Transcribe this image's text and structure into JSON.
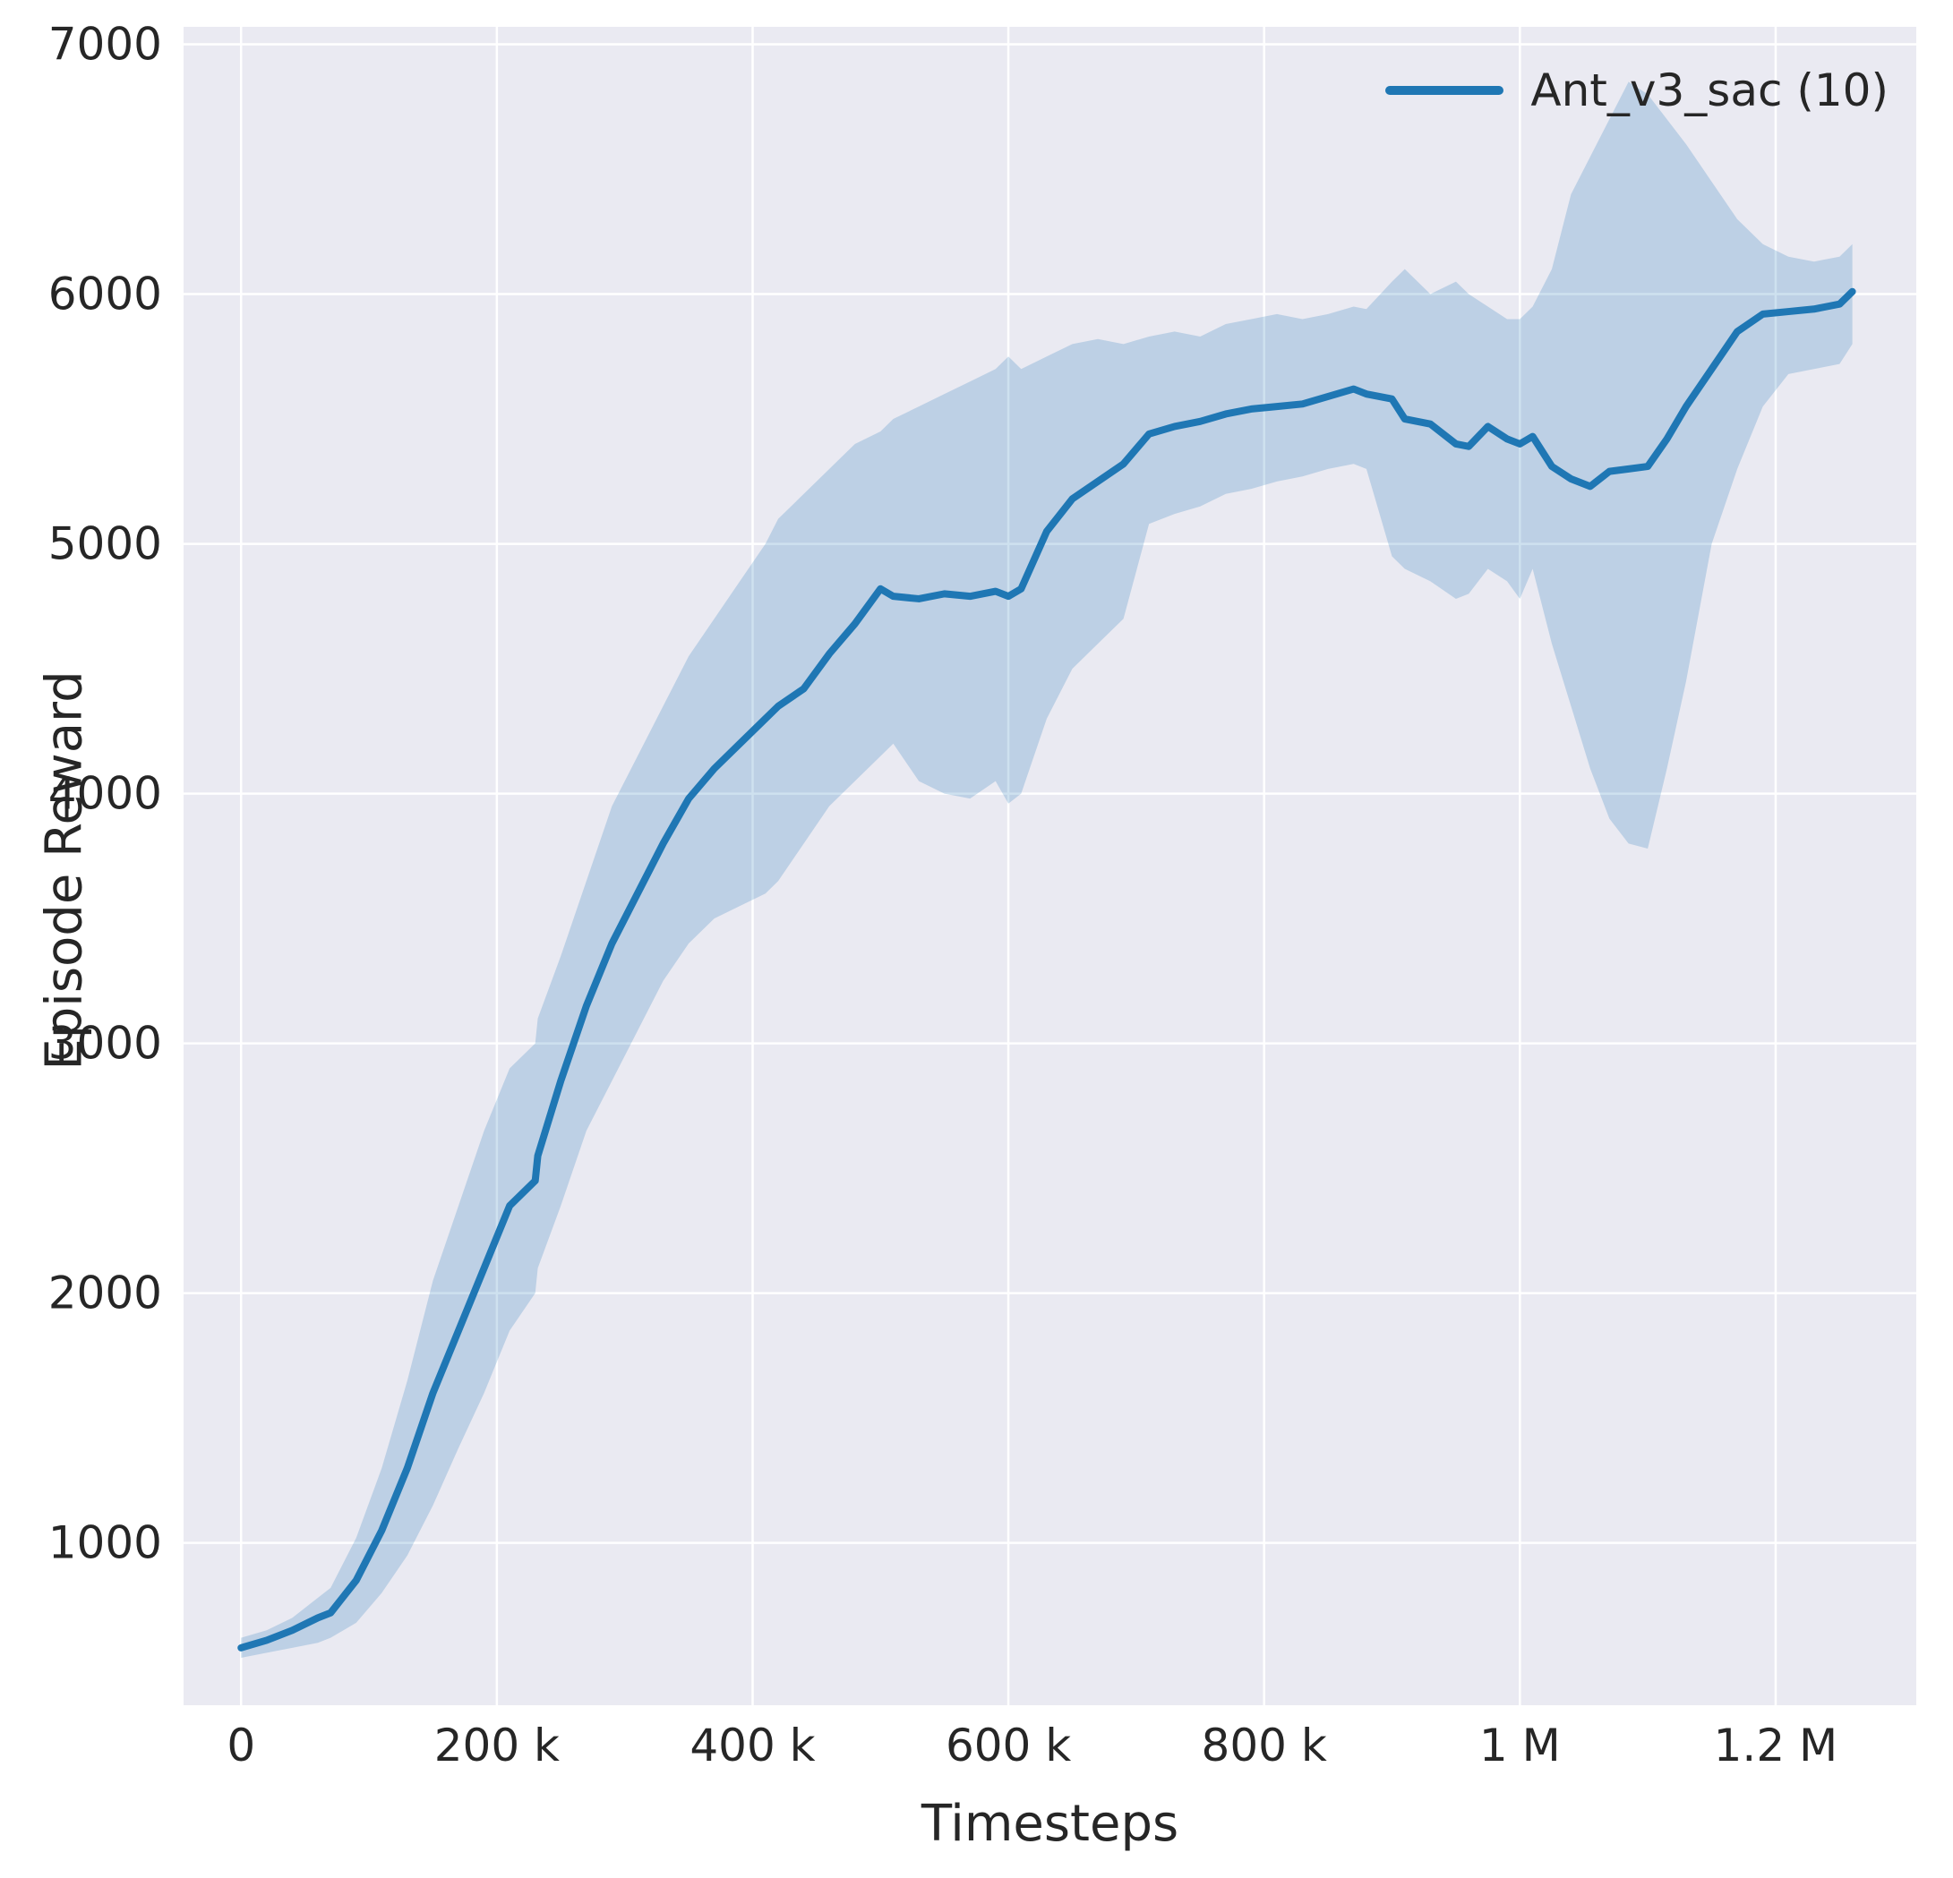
{
  "chart_data": {
    "type": "line",
    "title": "",
    "xlabel": "Timesteps",
    "ylabel": "Episode Reward",
    "grid": true,
    "legend": {
      "position": "upper right",
      "entries": [
        "Ant_v3_sac (10)"
      ]
    },
    "xlim": [
      -45,
      1310
    ],
    "ylim": [
      350,
      7070
    ],
    "x_ticks": {
      "values": [
        0,
        200,
        400,
        600,
        800,
        1000,
        1200
      ],
      "labels": [
        "0",
        "200 k",
        "400 k",
        "600 k",
        "800 k",
        "1 M",
        "1.2 M"
      ]
    },
    "y_ticks": {
      "values": [
        1000,
        2000,
        3000,
        4000,
        5000,
        6000,
        7000
      ],
      "labels": [
        "1000",
        "2000",
        "3000",
        "4000",
        "5000",
        "6000",
        "7000"
      ]
    },
    "x_unit": "timesteps in thousands",
    "styles": {
      "background": "#eaeaf2",
      "grid_color": "#ffffff",
      "text_color": "#262626"
    },
    "series": [
      {
        "name": "Ant_v3_sac (10)",
        "color": "#1f77b4",
        "band_alpha": 0.22,
        "x": [
          0,
          20,
          40,
          60,
          70,
          90,
          110,
          130,
          150,
          170,
          190,
          210,
          230,
          232,
          250,
          270,
          290,
          310,
          330,
          350,
          370,
          390,
          410,
          420,
          440,
          460,
          480,
          500,
          510,
          530,
          550,
          570,
          590,
          600,
          610,
          630,
          650,
          670,
          690,
          710,
          730,
          750,
          770,
          790,
          810,
          830,
          850,
          870,
          880,
          900,
          910,
          930,
          950,
          960,
          975,
          990,
          1000,
          1010,
          1025,
          1040,
          1055,
          1070,
          1085,
          1100,
          1115,
          1130,
          1150,
          1170,
          1190,
          1210,
          1230,
          1250,
          1260
        ],
        "mean": [
          580,
          610,
          650,
          700,
          720,
          850,
          1050,
          1300,
          1600,
          1850,
          2100,
          2350,
          2450,
          2550,
          2850,
          3150,
          3400,
          3600,
          3800,
          3980,
          4100,
          4200,
          4300,
          4350,
          4420,
          4560,
          4680,
          4820,
          4790,
          4780,
          4800,
          4790,
          4810,
          4790,
          4820,
          5050,
          5180,
          5250,
          5320,
          5440,
          5470,
          5490,
          5520,
          5540,
          5550,
          5560,
          5590,
          5620,
          5600,
          5580,
          5500,
          5480,
          5400,
          5390,
          5470,
          5420,
          5400,
          5430,
          5310,
          5260,
          5230,
          5290,
          5300,
          5310,
          5420,
          5550,
          5700,
          5850,
          5920,
          5930,
          5940,
          5960,
          6010
        ],
        "band_lower": [
          540,
          560,
          580,
          600,
          620,
          680,
          800,
          950,
          1150,
          1380,
          1600,
          1850,
          2000,
          2100,
          2350,
          2650,
          2850,
          3050,
          3250,
          3400,
          3500,
          3550,
          3600,
          3650,
          3800,
          3950,
          4050,
          4150,
          4200,
          4050,
          4000,
          3980,
          4050,
          3960,
          4000,
          4300,
          4500,
          4600,
          4700,
          5080,
          5120,
          5150,
          5200,
          5220,
          5250,
          5270,
          5300,
          5320,
          5300,
          4950,
          4900,
          4850,
          4780,
          4800,
          4900,
          4850,
          4780,
          4900,
          4600,
          4350,
          4100,
          3900,
          3800,
          3780,
          4100,
          4450,
          5000,
          5300,
          5550,
          5680,
          5700,
          5720,
          5800
        ],
        "band_upper": [
          620,
          650,
          700,
          780,
          820,
          1020,
          1300,
          1650,
          2050,
          2350,
          2650,
          2900,
          3000,
          3100,
          3350,
          3650,
          3950,
          4150,
          4350,
          4550,
          4700,
          4850,
          5000,
          5100,
          5200,
          5300,
          5400,
          5450,
          5500,
          5550,
          5600,
          5650,
          5700,
          5750,
          5700,
          5750,
          5800,
          5820,
          5800,
          5830,
          5850,
          5830,
          5880,
          5900,
          5920,
          5900,
          5920,
          5950,
          5940,
          6050,
          6100,
          6000,
          6050,
          6000,
          5950,
          5900,
          5900,
          5950,
          6100,
          6400,
          6550,
          6700,
          6850,
          6800,
          6700,
          6600,
          6450,
          6300,
          6200,
          6150,
          6130,
          6150,
          6200
        ]
      }
    ]
  }
}
